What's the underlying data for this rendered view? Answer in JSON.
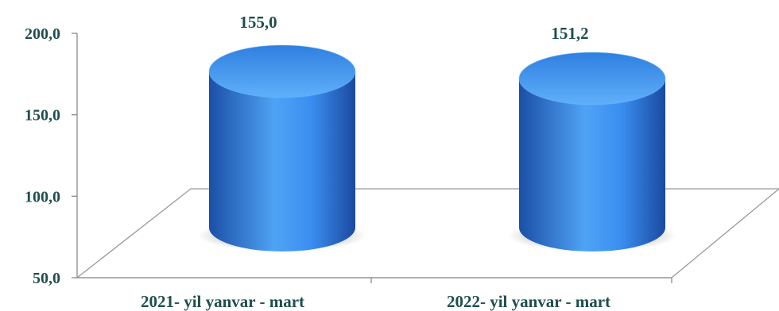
{
  "chart_data": {
    "type": "bar",
    "style": "3d-cylinder",
    "categories": [
      "2021- yil yanvar - mart",
      "2022- yil yanvar - mart"
    ],
    "values": [
      155.0,
      151.2
    ],
    "value_labels": [
      "155,0",
      "151,2"
    ],
    "ylim": [
      50,
      200
    ],
    "yticks": [
      50,
      100,
      150,
      200
    ],
    "ytick_labels": [
      "50,0",
      "100,0",
      "150,0",
      "200,0"
    ],
    "title": "",
    "xlabel": "",
    "ylabel": "",
    "grid": false,
    "legend": "none",
    "colors": {
      "bar_light": "#4fa3f5",
      "bar_mid": "#2f7fe0",
      "bar_dark": "#1b4fa6",
      "text": "#1f4e4e",
      "axis": "#8c8c8c"
    }
  }
}
